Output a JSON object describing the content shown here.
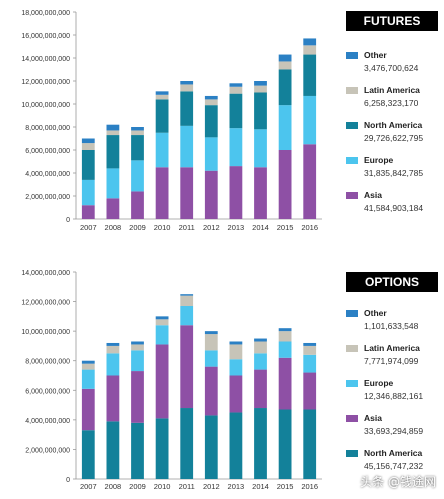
{
  "colors": {
    "asia": "#8e50a5",
    "europe": "#4cc5ee",
    "north_america": "#13819a",
    "latin_america": "#c7c4b8",
    "other": "#2b80c4",
    "title_bg": "#000000",
    "title_text": "#ffffff",
    "axis_text": "#333333",
    "grid": "#cccccc"
  },
  "chart_data": [
    {
      "type": "bar",
      "stacked": true,
      "title": "FUTURES",
      "categories": [
        "2007",
        "2008",
        "2009",
        "2010",
        "2011",
        "2012",
        "2013",
        "2014",
        "2015",
        "2016"
      ],
      "ylim": [
        0,
        18000000000
      ],
      "ytick_labels": [
        "18,000,000,000",
        "16,000,000,000",
        "14,000,000,000",
        "12,000,000,000",
        "10,000,000,000",
        "8,000,000,000",
        "6,000,000,000",
        "4,000,000,000",
        "2,000,000,000",
        "0"
      ],
      "yticks": [
        18000000000,
        16000000000,
        14000000000,
        12000000000,
        10000000000,
        8000000000,
        6000000000,
        4000000000,
        2000000000,
        0
      ],
      "series": [
        {
          "name": "Asia",
          "key": "asia",
          "values": [
            1200000000,
            1800000000,
            2400000000,
            4500000000,
            4500000000,
            4200000000,
            4600000000,
            4500000000,
            6000000000,
            6500000000
          ]
        },
        {
          "name": "Europe",
          "key": "europe",
          "values": [
            2200000000,
            2600000000,
            2700000000,
            3000000000,
            3600000000,
            2900000000,
            3300000000,
            3300000000,
            3900000000,
            4200000000
          ]
        },
        {
          "name": "North America",
          "key": "north_america",
          "values": [
            2600000000,
            2900000000,
            2200000000,
            2900000000,
            3000000000,
            2800000000,
            3000000000,
            3200000000,
            3100000000,
            3600000000
          ]
        },
        {
          "name": "Latin America",
          "key": "latin_america",
          "values": [
            600000000,
            400000000,
            400000000,
            400000000,
            600000000,
            500000000,
            600000000,
            600000000,
            700000000,
            800000000
          ]
        },
        {
          "name": "Other",
          "key": "other",
          "values": [
            400000000,
            500000000,
            300000000,
            300000000,
            300000000,
            300000000,
            300000000,
            400000000,
            600000000,
            600000000
          ]
        }
      ],
      "legend": [
        {
          "name": "Other",
          "key": "other",
          "value": "3,476,700,624"
        },
        {
          "name": "Latin America",
          "key": "latin_america",
          "value": "6,258,323,170"
        },
        {
          "name": "North America",
          "key": "north_america",
          "value": "29,726,622,795"
        },
        {
          "name": "Europe",
          "key": "europe",
          "value": "31,835,842,785"
        },
        {
          "name": "Asia",
          "key": "asia",
          "value": "41,584,903,184"
        }
      ]
    },
    {
      "type": "bar",
      "stacked": true,
      "title": "OPTIONS",
      "categories": [
        "2007",
        "2008",
        "2009",
        "2010",
        "2011",
        "2012",
        "2013",
        "2014",
        "2015",
        "2016"
      ],
      "ylim": [
        0,
        14000000000
      ],
      "ytick_labels": [
        "14,000,000,000",
        "12,000,000,000",
        "10,000,000,000",
        "8,000,000,000",
        "6,000,000,000",
        "4,000,000,000",
        "2,000,000,000",
        "0"
      ],
      "yticks": [
        14000000000,
        12000000000,
        10000000000,
        8000000000,
        6000000000,
        4000000000,
        2000000000,
        0
      ],
      "series": [
        {
          "name": "North America",
          "key": "north_america",
          "values": [
            3300000000,
            3900000000,
            3800000000,
            4100000000,
            4800000000,
            4300000000,
            4500000000,
            4800000000,
            4700000000,
            4700000000
          ]
        },
        {
          "name": "Asia",
          "key": "asia",
          "values": [
            2800000000,
            3100000000,
            3500000000,
            5000000000,
            5600000000,
            3300000000,
            2500000000,
            2600000000,
            3500000000,
            2500000000
          ]
        },
        {
          "name": "Europe",
          "key": "europe",
          "values": [
            1300000000,
            1500000000,
            1400000000,
            1300000000,
            1300000000,
            1100000000,
            1100000000,
            1100000000,
            1100000000,
            1200000000
          ]
        },
        {
          "name": "Latin America",
          "key": "latin_america",
          "values": [
            400000000,
            500000000,
            400000000,
            400000000,
            700000000,
            1100000000,
            1000000000,
            800000000,
            700000000,
            600000000
          ]
        },
        {
          "name": "Other",
          "key": "other",
          "values": [
            200000000,
            200000000,
            200000000,
            200000000,
            100000000,
            200000000,
            200000000,
            200000000,
            200000000,
            200000000
          ]
        }
      ],
      "legend": [
        {
          "name": "Other",
          "key": "other",
          "value": "1,101,633,548"
        },
        {
          "name": "Latin America",
          "key": "latin_america",
          "value": "7,771,974,099"
        },
        {
          "name": "Europe",
          "key": "europe",
          "value": "12,346,882,161"
        },
        {
          "name": "Asia",
          "key": "asia",
          "value": "33,693,294,859"
        },
        {
          "name": "North America",
          "key": "north_america",
          "value": "45,156,747,232"
        }
      ]
    }
  ],
  "watermark": "头条 @钱途网"
}
